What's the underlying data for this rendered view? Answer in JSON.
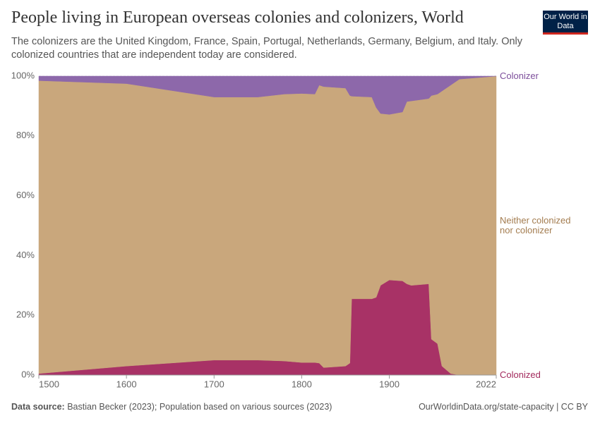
{
  "header": {
    "title": "People living in European overseas colonies and colonizers, World",
    "subtitle": "The colonizers are the United Kingdom, France, Spain, Portugal, Netherlands, Germany, Belgium, and Italy. Only colonized countries that are independent today are considered.",
    "logo": "Our World in Data"
  },
  "chart_data": {
    "type": "stacked_area",
    "x": [
      1500,
      1600,
      1700,
      1750,
      1780,
      1800,
      1815,
      1820,
      1825,
      1850,
      1855,
      1857,
      1880,
      1885,
      1890,
      1900,
      1915,
      1920,
      1925,
      1945,
      1948,
      1955,
      1960,
      1970,
      1980,
      2022
    ],
    "series": [
      {
        "name": "Colonized",
        "color": "#a83266",
        "label_color": "#a32a5d",
        "values": [
          0.5,
          3,
          5,
          5,
          4.7,
          4.2,
          4.2,
          4,
          2.5,
          3,
          4,
          25.5,
          25.5,
          26,
          30,
          31.8,
          31.5,
          30.5,
          30,
          30.5,
          12,
          10.5,
          3,
          0.5,
          0,
          0
        ]
      },
      {
        "name": "Neither colonized nor colonizer",
        "color": "#c9a77c",
        "label_color": "#a37c4f",
        "values": [
          98,
          94.5,
          88,
          88,
          89.3,
          90,
          89.8,
          93,
          94,
          93,
          89.5,
          67.8,
          67.5,
          63.5,
          57.5,
          55.4,
          56.5,
          61,
          61.7,
          62,
          81.5,
          83.5,
          92,
          96.5,
          99,
          100
        ]
      },
      {
        "name": "Colonizer",
        "color": "#8d68aa",
        "label_color": "#7d4e9b",
        "values": [
          1.5,
          2.5,
          7,
          7,
          6,
          5.8,
          6,
          3,
          3.5,
          4,
          6.5,
          6.7,
          7,
          10.5,
          12.5,
          12.8,
          12,
          8.5,
          8.3,
          7.5,
          6.5,
          6,
          5,
          3,
          1,
          0
        ]
      }
    ],
    "xlim": [
      1500,
      2022
    ],
    "xticks": [
      1500,
      1600,
      1700,
      1800,
      1900,
      2022
    ],
    "ylim": [
      0,
      100
    ],
    "yticks": [
      {
        "value": 0,
        "label": "0%"
      },
      {
        "value": 20,
        "label": "20%"
      },
      {
        "value": 40,
        "label": "40%"
      },
      {
        "value": 60,
        "label": "60%"
      },
      {
        "value": 80,
        "label": "80%"
      },
      {
        "value": 100,
        "label": "100%"
      }
    ],
    "grid": true
  },
  "footer": {
    "source_label": "Data source:",
    "source": "Bastian Becker (2023); Population based on various sources (2023)",
    "url": "OurWorldinData.org/state-capacity | CC BY"
  }
}
